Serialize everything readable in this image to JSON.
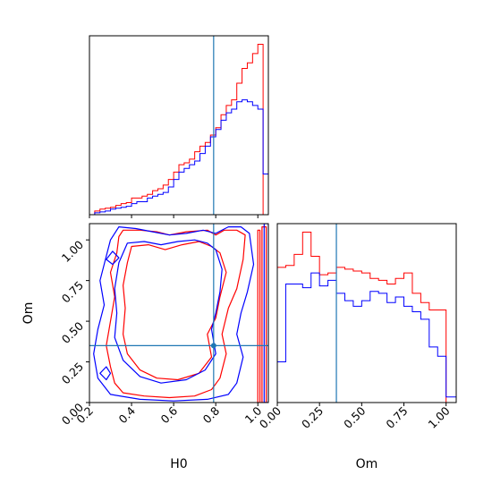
{
  "chart_data": {
    "type": "corner",
    "parameters": [
      "H0",
      "Om"
    ],
    "truth": {
      "H0": 0.79,
      "Om": 0.35
    },
    "colors": {
      "red": "#ff0000",
      "blue": "#0000ff",
      "truth": "#1f77b4"
    },
    "panels": [
      {
        "id": "hist-h0",
        "type": "histogram",
        "x": "H0",
        "xlim": [
          0.2,
          1.05
        ],
        "x_ticks": [
          0.2,
          0.4,
          0.6,
          0.8,
          1.0
        ],
        "bin_edges": [
          0.2,
          0.225,
          0.25,
          0.275,
          0.3,
          0.325,
          0.35,
          0.375,
          0.4,
          0.425,
          0.45,
          0.475,
          0.5,
          0.525,
          0.55,
          0.575,
          0.6,
          0.625,
          0.65,
          0.675,
          0.7,
          0.725,
          0.75,
          0.775,
          0.8,
          0.825,
          0.85,
          0.875,
          0.9,
          0.925,
          0.95,
          0.975,
          1.0,
          1.025,
          1.05
        ],
        "series": [
          {
            "color": "red",
            "values": [
              0,
              0.02,
              0.03,
              0.035,
              0.04,
              0.05,
              0.06,
              0.065,
              0.09,
              0.09,
              0.1,
              0.11,
              0.13,
              0.14,
              0.16,
              0.19,
              0.23,
              0.27,
              0.28,
              0.3,
              0.34,
              0.37,
              0.39,
              0.43,
              0.47,
              0.54,
              0.59,
              0.62,
              0.71,
              0.79,
              0.82,
              0.87,
              0.92,
              0.0
            ]
          },
          {
            "color": "blue",
            "values": [
              0,
              0.01,
              0.015,
              0.02,
              0.03,
              0.035,
              0.04,
              0.045,
              0.06,
              0.07,
              0.07,
              0.09,
              0.1,
              0.11,
              0.12,
              0.15,
              0.19,
              0.23,
              0.25,
              0.27,
              0.29,
              0.33,
              0.37,
              0.42,
              0.46,
              0.51,
              0.55,
              0.57,
              0.61,
              0.62,
              0.61,
              0.59,
              0.57,
              0.22
            ]
          }
        ]
      },
      {
        "id": "contour-h0-om",
        "type": "contour",
        "x": "H0",
        "y": "Om",
        "xlim": [
          0.2,
          1.05
        ],
        "ylim": [
          0.0,
          1.1
        ],
        "x_ticks": [
          0.2,
          0.4,
          0.6,
          0.8,
          1.0
        ],
        "y_ticks": [
          0.0,
          0.25,
          0.5,
          0.75,
          1.0
        ],
        "x_tick_labels": [
          "0.2",
          "0.4",
          "0.6",
          "0.8",
          "1.0"
        ],
        "y_tick_labels": [
          "0.00",
          "0.25",
          "0.50",
          "0.75",
          "1.00"
        ],
        "xlabel": "H0",
        "ylabel": "Om",
        "series": [
          {
            "color": "red",
            "contours": [
              [
                [
                  0.36,
                  1.06
                ],
                [
                  0.44,
                  1.06
                ],
                [
                  0.52,
                  1.05
                ],
                [
                  0.58,
                  1.03
                ],
                [
                  0.66,
                  1.05
                ],
                [
                  0.76,
                  1.06
                ],
                [
                  0.8,
                  1.03
                ],
                [
                  0.84,
                  1.06
                ],
                [
                  0.9,
                  1.06
                ],
                [
                  0.94,
                  1.03
                ],
                [
                  0.93,
                  0.88
                ],
                [
                  0.9,
                  0.7
                ],
                [
                  0.86,
                  0.58
                ],
                [
                  0.83,
                  0.42
                ],
                [
                  0.85,
                  0.3
                ],
                [
                  0.82,
                  0.15
                ],
                [
                  0.78,
                  0.08
                ],
                [
                  0.7,
                  0.04
                ],
                [
                  0.58,
                  0.03
                ],
                [
                  0.46,
                  0.04
                ],
                [
                  0.36,
                  0.06
                ],
                [
                  0.32,
                  0.12
                ],
                [
                  0.3,
                  0.22
                ],
                [
                  0.28,
                  0.35
                ],
                [
                  0.3,
                  0.5
                ],
                [
                  0.32,
                  0.65
                ],
                [
                  0.3,
                  0.8
                ],
                [
                  0.33,
                  0.92
                ],
                [
                  0.34,
                  1.02
                ],
                [
                  0.36,
                  1.06
                ]
              ],
              [
                [
                  0.4,
                  0.96
                ],
                [
                  0.48,
                  0.97
                ],
                [
                  0.56,
                  0.94
                ],
                [
                  0.64,
                  0.97
                ],
                [
                  0.72,
                  0.99
                ],
                [
                  0.78,
                  0.96
                ],
                [
                  0.82,
                  0.92
                ],
                [
                  0.85,
                  0.8
                ],
                [
                  0.82,
                  0.65
                ],
                [
                  0.8,
                  0.52
                ],
                [
                  0.76,
                  0.42
                ],
                [
                  0.78,
                  0.28
                ],
                [
                  0.72,
                  0.18
                ],
                [
                  0.62,
                  0.14
                ],
                [
                  0.52,
                  0.15
                ],
                [
                  0.44,
                  0.2
                ],
                [
                  0.38,
                  0.3
                ],
                [
                  0.36,
                  0.42
                ],
                [
                  0.37,
                  0.58
                ],
                [
                  0.36,
                  0.72
                ],
                [
                  0.38,
                  0.86
                ],
                [
                  0.4,
                  0.96
                ]
              ],
              [
                [
                  1.02,
                  1.08
                ],
                [
                  1.04,
                  1.08
                ],
                [
                  1.04,
                  0.0
                ],
                [
                  1.02,
                  0.0
                ],
                [
                  1.02,
                  1.08
                ]
              ],
              [
                [
                  1.0,
                  1.06
                ],
                [
                  1.01,
                  1.06
                ],
                [
                  1.01,
                  0.0
                ],
                [
                  1.0,
                  0.0
                ],
                [
                  1.0,
                  1.06
                ]
              ]
            ]
          },
          {
            "color": "blue",
            "contours": [
              [
                [
                  0.34,
                  1.08
                ],
                [
                  0.42,
                  1.07
                ],
                [
                  0.5,
                  1.05
                ],
                [
                  0.58,
                  1.03
                ],
                [
                  0.66,
                  1.04
                ],
                [
                  0.74,
                  1.06
                ],
                [
                  0.8,
                  1.04
                ],
                [
                  0.86,
                  1.08
                ],
                [
                  0.92,
                  1.08
                ],
                [
                  0.96,
                  1.04
                ],
                [
                  0.98,
                  0.85
                ],
                [
                  0.95,
                  0.68
                ],
                [
                  0.92,
                  0.55
                ],
                [
                  0.9,
                  0.42
                ],
                [
                  0.93,
                  0.28
                ],
                [
                  0.9,
                  0.12
                ],
                [
                  0.86,
                  0.05
                ],
                [
                  0.76,
                  0.02
                ],
                [
                  0.6,
                  0.01
                ],
                [
                  0.44,
                  0.02
                ],
                [
                  0.3,
                  0.05
                ],
                [
                  0.24,
                  0.15
                ],
                [
                  0.22,
                  0.3
                ],
                [
                  0.24,
                  0.45
                ],
                [
                  0.27,
                  0.6
                ],
                [
                  0.25,
                  0.75
                ],
                [
                  0.28,
                  0.9
                ],
                [
                  0.3,
                  1.0
                ],
                [
                  0.34,
                  1.08
                ]
              ],
              [
                [
                  0.38,
                  0.98
                ],
                [
                  0.46,
                  0.99
                ],
                [
                  0.54,
                  0.97
                ],
                [
                  0.62,
                  0.99
                ],
                [
                  0.7,
                  1.0
                ],
                [
                  0.76,
                  0.98
                ],
                [
                  0.8,
                  0.94
                ],
                [
                  0.83,
                  0.82
                ],
                [
                  0.82,
                  0.68
                ],
                [
                  0.8,
                  0.55
                ],
                [
                  0.78,
                  0.45
                ],
                [
                  0.8,
                  0.3
                ],
                [
                  0.75,
                  0.2
                ],
                [
                  0.66,
                  0.14
                ],
                [
                  0.54,
                  0.12
                ],
                [
                  0.44,
                  0.16
                ],
                [
                  0.36,
                  0.26
                ],
                [
                  0.32,
                  0.4
                ],
                [
                  0.33,
                  0.55
                ],
                [
                  0.32,
                  0.7
                ],
                [
                  0.34,
                  0.86
                ],
                [
                  0.38,
                  0.98
                ]
              ],
              [
                [
                  1.03,
                  1.1
                ],
                [
                  1.05,
                  1.1
                ],
                [
                  1.05,
                  0.0
                ],
                [
                  1.03,
                  0.0
                ],
                [
                  1.03,
                  1.1
                ]
              ],
              [
                [
                  0.28,
                  0.88
                ],
                [
                  0.31,
                  0.93
                ],
                [
                  0.34,
                  0.89
                ],
                [
                  0.31,
                  0.85
                ],
                [
                  0.28,
                  0.88
                ]
              ],
              [
                [
                  0.25,
                  0.18
                ],
                [
                  0.28,
                  0.22
                ],
                [
                  0.3,
                  0.18
                ],
                [
                  0.28,
                  0.14
                ],
                [
                  0.25,
                  0.18
                ]
              ]
            ]
          }
        ]
      },
      {
        "id": "hist-om",
        "type": "histogram",
        "x": "Om",
        "xlim": [
          0.0,
          1.06
        ],
        "x_ticks": [
          0.0,
          0.25,
          0.5,
          0.75,
          1.0
        ],
        "x_tick_labels": [
          "0.00",
          "0.25",
          "0.50",
          "0.75",
          "1.00"
        ],
        "xlabel": "Om",
        "bin_edges": [
          0.0,
          0.05,
          0.1,
          0.15,
          0.2,
          0.25,
          0.3,
          0.35,
          0.4,
          0.45,
          0.5,
          0.55,
          0.6,
          0.65,
          0.7,
          0.75,
          0.8,
          0.85,
          0.9,
          0.95,
          1.0,
          1.06
        ],
        "series": [
          {
            "color": "red",
            "values": [
              0.73,
              0.74,
              0.8,
              0.92,
              0.79,
              0.69,
              0.7,
              0.73,
              0.72,
              0.71,
              0.7,
              0.67,
              0.66,
              0.64,
              0.67,
              0.7,
              0.59,
              0.54,
              0.5,
              0.5,
              0.0
            ]
          },
          {
            "color": "blue",
            "values": [
              0.22,
              0.64,
              0.64,
              0.62,
              0.7,
              0.63,
              0.66,
              0.59,
              0.55,
              0.52,
              0.55,
              0.6,
              0.59,
              0.54,
              0.57,
              0.52,
              0.49,
              0.45,
              0.3,
              0.25,
              0.03
            ]
          }
        ]
      }
    ]
  }
}
